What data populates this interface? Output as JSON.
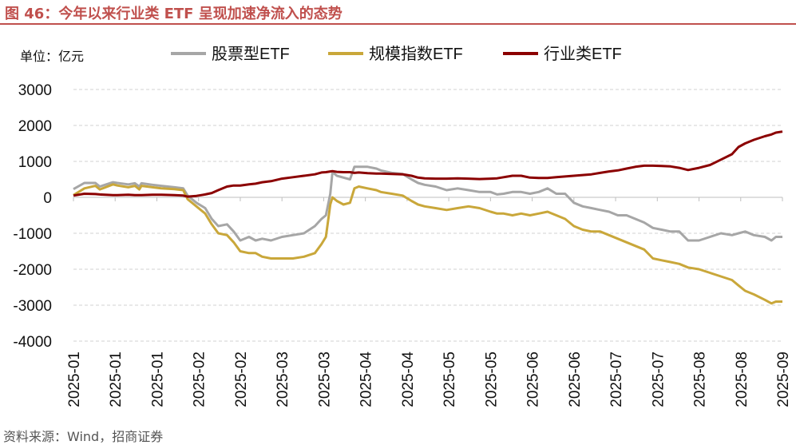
{
  "figure": {
    "title": "图 46：今年以来行业类 ETF 呈现加速净流入的态势",
    "source": "资料来源：Wind，招商证券"
  },
  "chart_data": {
    "type": "line",
    "unit_label": "单位：亿元",
    "ylim": [
      -4000,
      3000
    ],
    "yticks": [
      3000,
      2000,
      1000,
      0,
      -1000,
      -2000,
      -3000,
      -4000
    ],
    "x_tick_labels": [
      "2025-01",
      "2025-01",
      "2025-01",
      "2025-02",
      "2025-02",
      "2025-03",
      "2025-03",
      "2025-04",
      "2025-04",
      "2025-05",
      "2025-05",
      "2025-06",
      "2025-06",
      "2025-07",
      "2025-07",
      "2025-08",
      "2025-08",
      "2025-09"
    ],
    "grid": "horizontal dashed",
    "legend_position": "top",
    "series": [
      {
        "name": "股票型ETF",
        "color": "#a6a6a6",
        "points": [
          [
            0,
            230
          ],
          [
            0.5,
            400
          ],
          [
            1,
            400
          ],
          [
            1.2,
            300
          ],
          [
            1.8,
            420
          ],
          [
            2,
            400
          ],
          [
            2.5,
            360
          ],
          [
            2.8,
            390
          ],
          [
            3,
            300
          ],
          [
            3.1,
            390
          ],
          [
            3.6,
            350
          ],
          [
            4,
            320
          ],
          [
            4.6,
            280
          ],
          [
            5,
            250
          ],
          [
            5.2,
            50
          ],
          [
            5.6,
            -150
          ],
          [
            6,
            -300
          ],
          [
            6.3,
            -600
          ],
          [
            6.6,
            -800
          ],
          [
            7,
            -750
          ],
          [
            7.3,
            -950
          ],
          [
            7.6,
            -1200
          ],
          [
            8,
            -1100
          ],
          [
            8.3,
            -1200
          ],
          [
            8.6,
            -1150
          ],
          [
            9,
            -1200
          ],
          [
            9.5,
            -1100
          ],
          [
            10,
            -1050
          ],
          [
            10.5,
            -1000
          ],
          [
            11,
            -800
          ],
          [
            11.3,
            -600
          ],
          [
            11.5,
            -500
          ],
          [
            11.7,
            100
          ],
          [
            11.8,
            700
          ],
          [
            12,
            600
          ],
          [
            12.3,
            550
          ],
          [
            12.6,
            500
          ],
          [
            12.8,
            850
          ],
          [
            13,
            850
          ],
          [
            13.4,
            850
          ],
          [
            13.8,
            800
          ],
          [
            14,
            750
          ],
          [
            14.5,
            680
          ],
          [
            15,
            650
          ],
          [
            15.4,
            500
          ],
          [
            15.7,
            400
          ],
          [
            16,
            350
          ],
          [
            16.5,
            300
          ],
          [
            17,
            200
          ],
          [
            17.5,
            250
          ],
          [
            18,
            200
          ],
          [
            18.5,
            150
          ],
          [
            19,
            150
          ],
          [
            19.3,
            80
          ],
          [
            19.6,
            100
          ],
          [
            20,
            150
          ],
          [
            20.4,
            150
          ],
          [
            20.8,
            100
          ],
          [
            21.2,
            150
          ],
          [
            21.6,
            250
          ],
          [
            22,
            100
          ],
          [
            22.4,
            100
          ],
          [
            22.8,
            -150
          ],
          [
            23.2,
            -250
          ],
          [
            23.6,
            -300
          ],
          [
            24,
            -350
          ],
          [
            24.4,
            -400
          ],
          [
            24.8,
            -500
          ],
          [
            25.2,
            -500
          ],
          [
            25.6,
            -600
          ],
          [
            26,
            -700
          ],
          [
            26.4,
            -850
          ],
          [
            26.8,
            -900
          ],
          [
            27.2,
            -950
          ],
          [
            27.6,
            -950
          ],
          [
            28,
            -1200
          ],
          [
            28.5,
            -1200
          ],
          [
            29,
            -1100
          ],
          [
            29.5,
            -1000
          ],
          [
            30,
            -1050
          ],
          [
            30.3,
            -1000
          ],
          [
            30.6,
            -950
          ],
          [
            31,
            -1050
          ],
          [
            31.5,
            -1100
          ],
          [
            31.8,
            -1200
          ],
          [
            32,
            -1100
          ],
          [
            32.3,
            -1100
          ]
        ]
      },
      {
        "name": "规模指数ETF",
        "color": "#c9a73a",
        "points": [
          [
            0,
            60
          ],
          [
            0.5,
            250
          ],
          [
            1,
            320
          ],
          [
            1.2,
            220
          ],
          [
            1.8,
            360
          ],
          [
            2,
            330
          ],
          [
            2.5,
            280
          ],
          [
            2.8,
            320
          ],
          [
            3,
            220
          ],
          [
            3.1,
            320
          ],
          [
            3.6,
            280
          ],
          [
            4,
            250
          ],
          [
            4.6,
            230
          ],
          [
            5,
            200
          ],
          [
            5.2,
            -50
          ],
          [
            5.6,
            -250
          ],
          [
            6,
            -450
          ],
          [
            6.3,
            -750
          ],
          [
            6.6,
            -1000
          ],
          [
            7,
            -1050
          ],
          [
            7.3,
            -1250
          ],
          [
            7.6,
            -1500
          ],
          [
            8,
            -1550
          ],
          [
            8.3,
            -1550
          ],
          [
            8.6,
            -1650
          ],
          [
            9,
            -1700
          ],
          [
            9.5,
            -1700
          ],
          [
            10,
            -1700
          ],
          [
            10.5,
            -1650
          ],
          [
            11,
            -1550
          ],
          [
            11.3,
            -1300
          ],
          [
            11.5,
            -1100
          ],
          [
            11.7,
            -200
          ],
          [
            11.8,
            0
          ],
          [
            12,
            -100
          ],
          [
            12.3,
            -200
          ],
          [
            12.6,
            -150
          ],
          [
            12.8,
            250
          ],
          [
            13,
            300
          ],
          [
            13.4,
            250
          ],
          [
            13.8,
            200
          ],
          [
            14,
            150
          ],
          [
            14.5,
            100
          ],
          [
            15,
            50
          ],
          [
            15.4,
            -100
          ],
          [
            15.7,
            -200
          ],
          [
            16,
            -250
          ],
          [
            16.5,
            -300
          ],
          [
            17,
            -350
          ],
          [
            17.5,
            -300
          ],
          [
            18,
            -250
          ],
          [
            18.5,
            -300
          ],
          [
            19,
            -400
          ],
          [
            19.3,
            -450
          ],
          [
            19.6,
            -450
          ],
          [
            20,
            -500
          ],
          [
            20.4,
            -450
          ],
          [
            20.8,
            -500
          ],
          [
            21.2,
            -450
          ],
          [
            21.6,
            -400
          ],
          [
            22,
            -500
          ],
          [
            22.4,
            -600
          ],
          [
            22.8,
            -800
          ],
          [
            23.2,
            -900
          ],
          [
            23.6,
            -950
          ],
          [
            24,
            -950
          ],
          [
            24.4,
            -1050
          ],
          [
            24.8,
            -1150
          ],
          [
            25.2,
            -1250
          ],
          [
            25.6,
            -1350
          ],
          [
            26,
            -1450
          ],
          [
            26.4,
            -1700
          ],
          [
            26.8,
            -1750
          ],
          [
            27.2,
            -1800
          ],
          [
            27.6,
            -1850
          ],
          [
            28,
            -1950
          ],
          [
            28.5,
            -2000
          ],
          [
            29,
            -2100
          ],
          [
            29.5,
            -2200
          ],
          [
            30,
            -2300
          ],
          [
            30.3,
            -2450
          ],
          [
            30.6,
            -2600
          ],
          [
            31,
            -2700
          ],
          [
            31.5,
            -2850
          ],
          [
            31.8,
            -2950
          ],
          [
            32,
            -2900
          ],
          [
            32.3,
            -2900
          ]
        ]
      },
      {
        "name": "行业类ETF",
        "color": "#8b0000",
        "points": [
          [
            0,
            50
          ],
          [
            0.5,
            100
          ],
          [
            1,
            90
          ],
          [
            1.2,
            80
          ],
          [
            1.8,
            60
          ],
          [
            2,
            60
          ],
          [
            2.5,
            70
          ],
          [
            2.8,
            60
          ],
          [
            3,
            60
          ],
          [
            3.1,
            60
          ],
          [
            3.6,
            70
          ],
          [
            4,
            70
          ],
          [
            4.6,
            60
          ],
          [
            5,
            50
          ],
          [
            5.2,
            20
          ],
          [
            5.6,
            40
          ],
          [
            6,
            80
          ],
          [
            6.3,
            120
          ],
          [
            6.6,
            200
          ],
          [
            7,
            300
          ],
          [
            7.3,
            330
          ],
          [
            7.6,
            330
          ],
          [
            8,
            360
          ],
          [
            8.3,
            380
          ],
          [
            8.6,
            420
          ],
          [
            9,
            450
          ],
          [
            9.5,
            520
          ],
          [
            10,
            560
          ],
          [
            10.5,
            600
          ],
          [
            11,
            640
          ],
          [
            11.3,
            690
          ],
          [
            11.5,
            700
          ],
          [
            11.7,
            720
          ],
          [
            11.8,
            730
          ],
          [
            12,
            710
          ],
          [
            12.3,
            700
          ],
          [
            12.6,
            700
          ],
          [
            12.8,
            680
          ],
          [
            13,
            690
          ],
          [
            13.4,
            670
          ],
          [
            13.8,
            660
          ],
          [
            14,
            660
          ],
          [
            14.5,
            650
          ],
          [
            15,
            640
          ],
          [
            15.4,
            600
          ],
          [
            15.7,
            550
          ],
          [
            16,
            530
          ],
          [
            16.5,
            520
          ],
          [
            17,
            520
          ],
          [
            17.5,
            530
          ],
          [
            18,
            520
          ],
          [
            18.5,
            510
          ],
          [
            19,
            520
          ],
          [
            19.3,
            530
          ],
          [
            19.6,
            560
          ],
          [
            20,
            600
          ],
          [
            20.4,
            600
          ],
          [
            20.8,
            550
          ],
          [
            21.2,
            540
          ],
          [
            21.6,
            540
          ],
          [
            22,
            560
          ],
          [
            22.4,
            580
          ],
          [
            22.8,
            600
          ],
          [
            23.2,
            620
          ],
          [
            23.6,
            640
          ],
          [
            24,
            680
          ],
          [
            24.4,
            720
          ],
          [
            24.8,
            750
          ],
          [
            25.2,
            800
          ],
          [
            25.6,
            850
          ],
          [
            26,
            880
          ],
          [
            26.4,
            880
          ],
          [
            26.8,
            870
          ],
          [
            27.2,
            860
          ],
          [
            27.6,
            820
          ],
          [
            28,
            760
          ],
          [
            28.5,
            820
          ],
          [
            29,
            900
          ],
          [
            29.5,
            1050
          ],
          [
            30,
            1200
          ],
          [
            30.3,
            1400
          ],
          [
            30.6,
            1500
          ],
          [
            31,
            1600
          ],
          [
            31.5,
            1700
          ],
          [
            31.8,
            1750
          ],
          [
            32,
            1800
          ],
          [
            32.3,
            1830
          ]
        ]
      }
    ]
  }
}
